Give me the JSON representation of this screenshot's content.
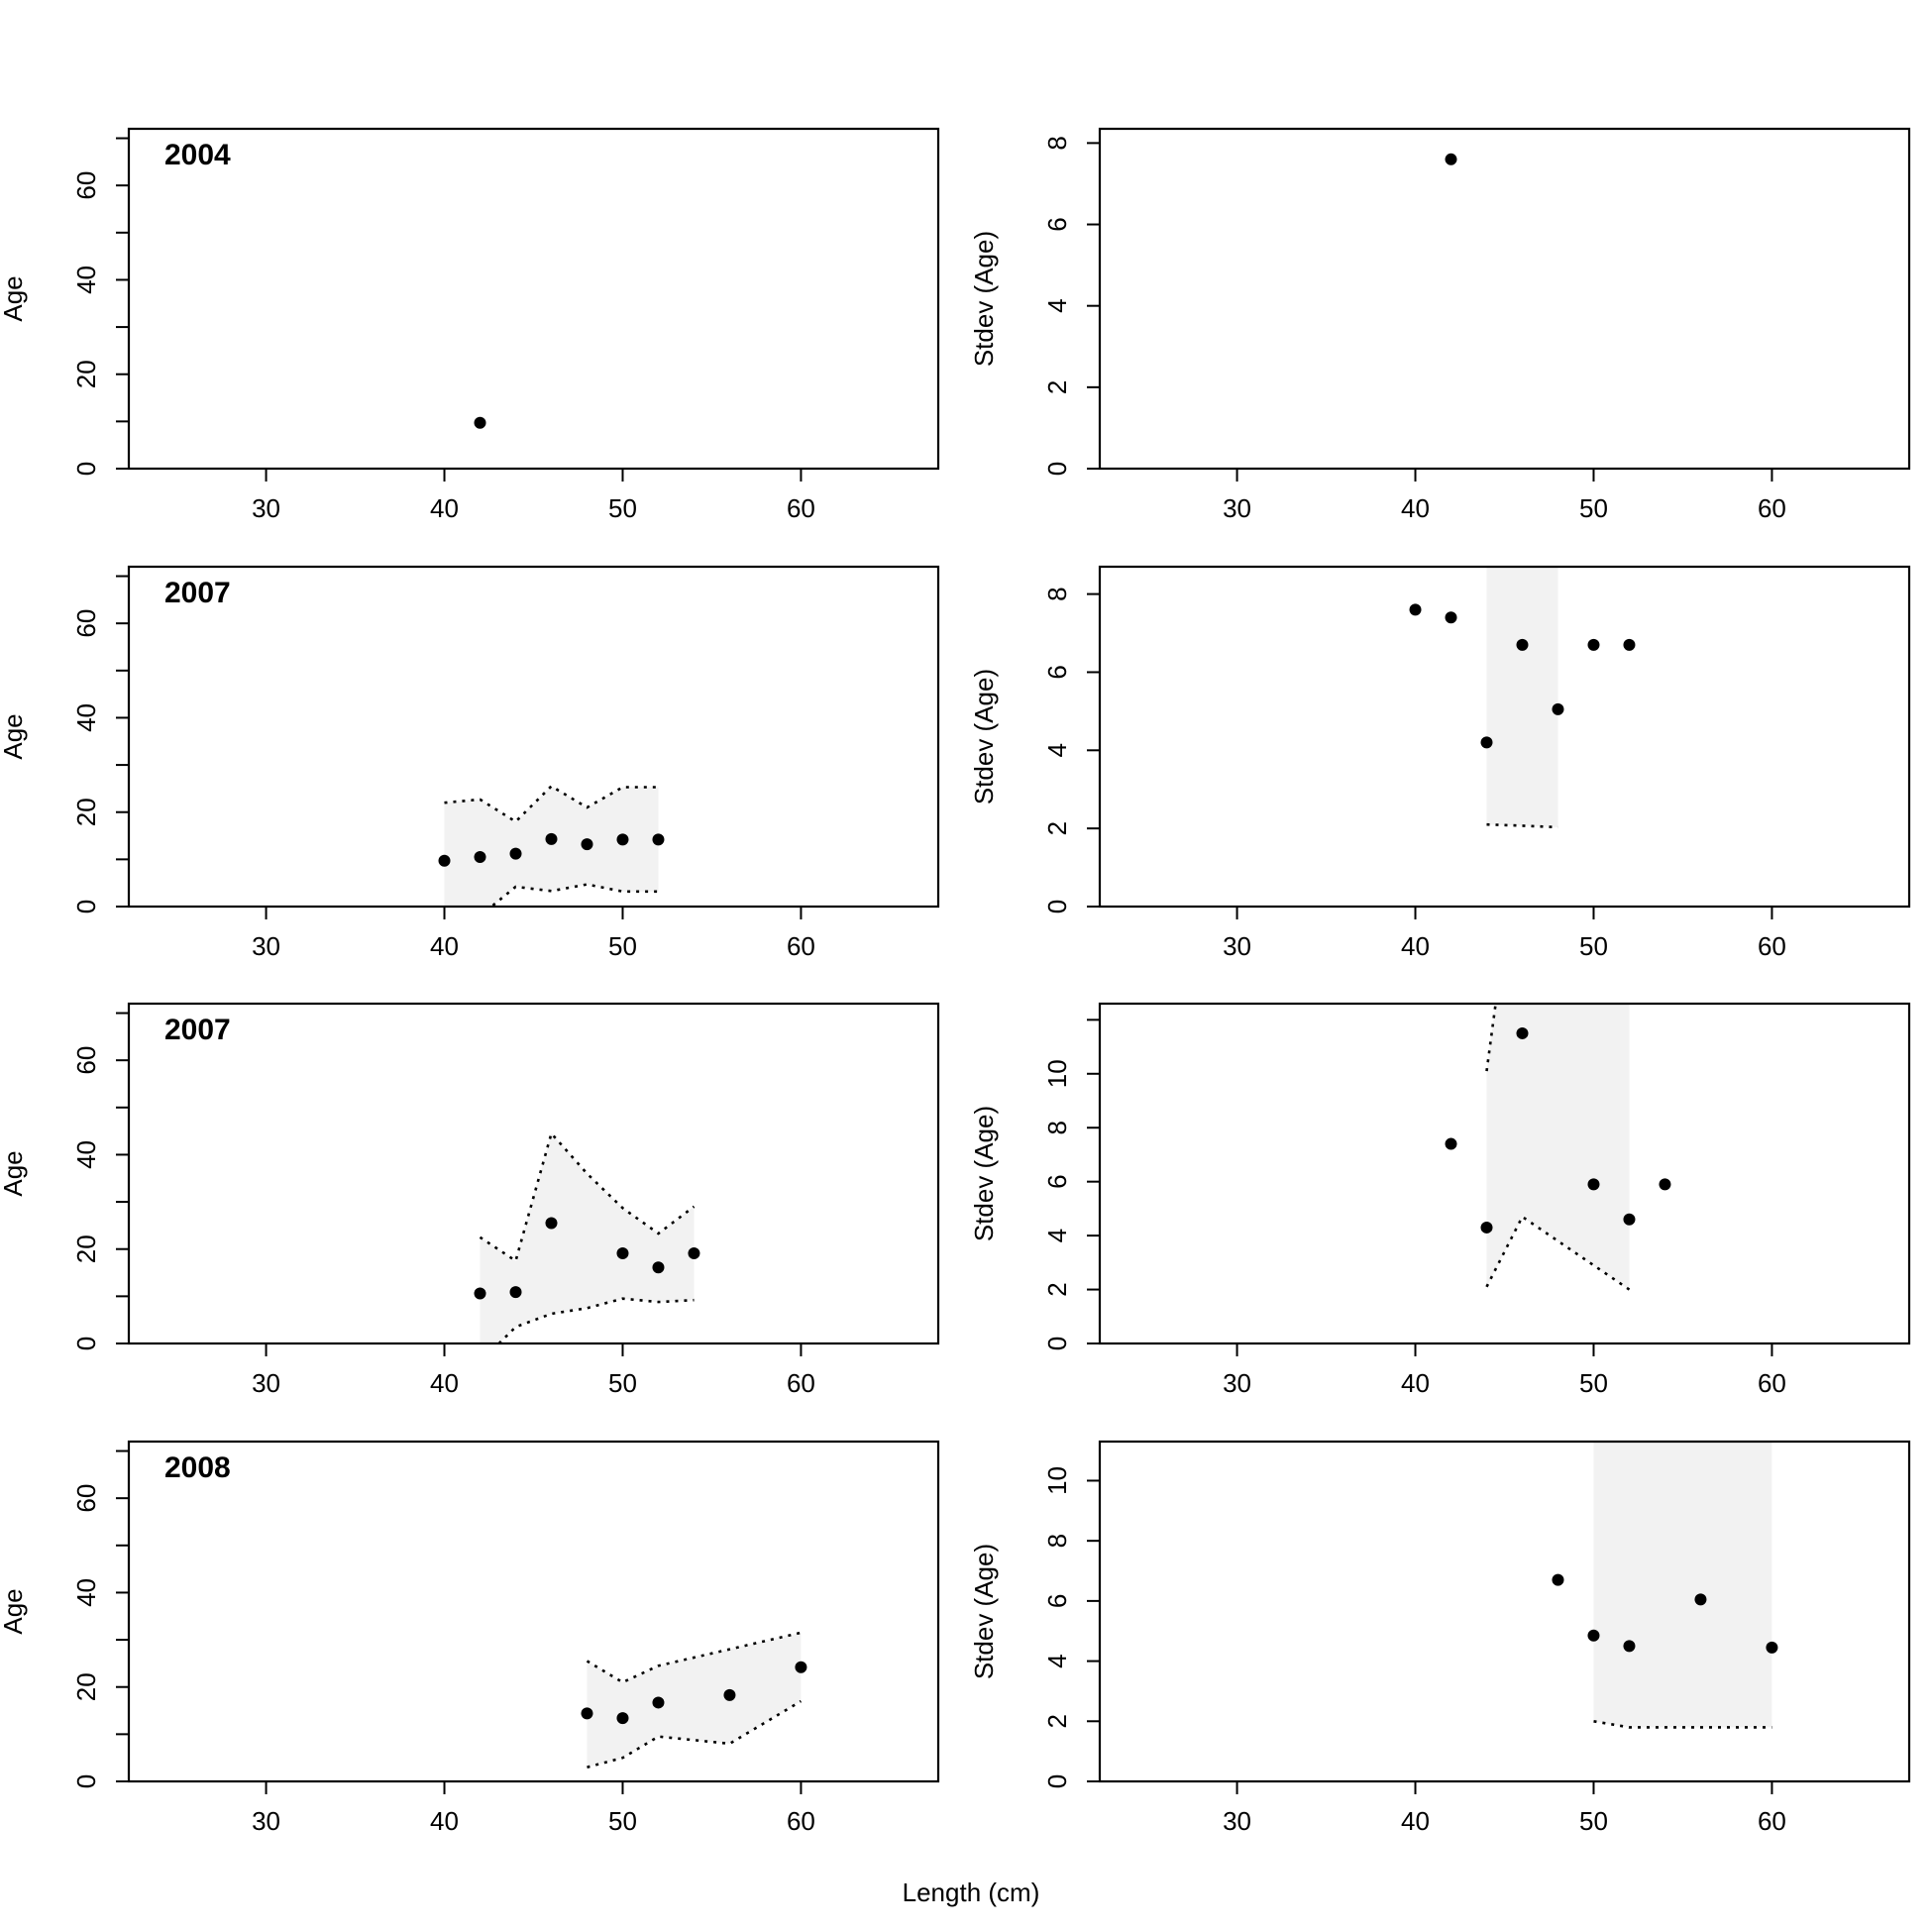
{
  "figure": {
    "xlabel": "Length (cm)"
  },
  "chart_data": [
    {
      "type": "scatter",
      "title": "2004",
      "ylabel": "Age",
      "xlim": [
        22.3,
        67.7
      ],
      "ylim": [
        0,
        72
      ],
      "xticks": [
        30,
        40,
        50,
        60
      ],
      "yticks": [
        0,
        20,
        40,
        60
      ],
      "yminor": [
        10,
        30,
        50,
        70
      ],
      "points": {
        "x": [
          42
        ],
        "y": [
          9.7
        ]
      },
      "band": null
    },
    {
      "type": "scatter",
      "title": "",
      "ylabel": "Stdev (Age)",
      "xlim": [
        22.3,
        67.7
      ],
      "ylim": [
        0,
        8.35
      ],
      "xticks": [
        30,
        40,
        50,
        60
      ],
      "yticks": [
        0,
        2,
        4,
        6,
        8
      ],
      "yminor": [],
      "points": {
        "x": [
          42
        ],
        "y": [
          7.6
        ]
      },
      "band": null
    },
    {
      "type": "area",
      "title": "2007",
      "ylabel": "Age",
      "xlim": [
        22.3,
        67.7
      ],
      "ylim": [
        0,
        72
      ],
      "xticks": [
        30,
        40,
        50,
        60
      ],
      "yticks": [
        0,
        20,
        40,
        60
      ],
      "yminor": [
        10,
        30,
        50,
        70
      ],
      "points": {
        "x": [
          40,
          42,
          44,
          46,
          48,
          50,
          52
        ],
        "y": [
          9.7,
          10.5,
          11.2,
          14.3,
          13.2,
          14.2,
          14.2
        ]
      },
      "band": {
        "x": [
          40,
          42,
          44,
          46,
          48,
          50,
          52
        ],
        "upper": [
          22,
          22.7,
          18,
          25.5,
          21,
          25.3,
          25.3
        ],
        "lower": [
          -4,
          -2,
          4.2,
          3.3,
          4.7,
          3.2,
          3.2
        ]
      }
    },
    {
      "type": "area",
      "title": "",
      "ylabel": "Stdev (Age)",
      "xlim": [
        22.3,
        67.7
      ],
      "ylim": [
        0,
        8.7
      ],
      "xticks": [
        30,
        40,
        50,
        60
      ],
      "yticks": [
        0,
        2,
        4,
        6,
        8
      ],
      "yminor": [],
      "points": {
        "x": [
          40,
          42,
          44,
          46,
          48,
          50,
          52
        ],
        "y": [
          7.6,
          7.4,
          4.2,
          6.7,
          5.05,
          6.7,
          6.7
        ]
      },
      "band": {
        "x": [
          44,
          46,
          48
        ],
        "upper": [
          12,
          12,
          12
        ],
        "lower": [
          2.1,
          2.07,
          2.03
        ]
      }
    },
    {
      "type": "area",
      "title": "2007",
      "ylabel": "Age",
      "xlim": [
        22.3,
        67.7
      ],
      "ylim": [
        0,
        72
      ],
      "xticks": [
        30,
        40,
        50,
        60
      ],
      "yticks": [
        0,
        20,
        40,
        60
      ],
      "yminor": [
        10,
        30,
        50,
        70
      ],
      "points": {
        "x": [
          42,
          44,
          46,
          50,
          52,
          54
        ],
        "y": [
          10.6,
          10.9,
          25.5,
          19.1,
          16.1,
          19.1
        ]
      },
      "band": {
        "x": [
          42,
          44,
          46,
          48,
          50,
          52,
          54
        ],
        "upper": [
          22.5,
          17.5,
          44.5,
          36,
          28.7,
          23.3,
          29
        ],
        "lower": [
          -4,
          3.5,
          6.3,
          7.5,
          9.5,
          8.8,
          9.2
        ]
      }
    },
    {
      "type": "area",
      "title": "",
      "ylabel": "Stdev (Age)",
      "xlim": [
        22.3,
        67.7
      ],
      "ylim": [
        0,
        12.6
      ],
      "xticks": [
        30,
        40,
        50,
        60
      ],
      "yticks": [
        0,
        2,
        4,
        6,
        8,
        10
      ],
      "yminor": [
        12
      ],
      "points": {
        "x": [
          42,
          44,
          46,
          50,
          52,
          54
        ],
        "y": [
          7.4,
          4.3,
          11.5,
          5.9,
          4.6,
          5.9
        ]
      },
      "band": {
        "x": [
          44,
          46,
          52
        ],
        "upper": [
          10.1,
          20,
          20
        ],
        "lower": [
          2.1,
          4.7,
          2
        ]
      }
    },
    {
      "type": "area",
      "title": "2008",
      "ylabel": "Age",
      "xlim": [
        22.3,
        67.7
      ],
      "ylim": [
        0,
        72
      ],
      "xticks": [
        30,
        40,
        50,
        60
      ],
      "yticks": [
        0,
        20,
        40,
        60
      ],
      "yminor": [
        10,
        30,
        50,
        70
      ],
      "points": {
        "x": [
          48,
          50,
          52,
          56,
          60
        ],
        "y": [
          14.4,
          13.4,
          16.7,
          18.3,
          24.2
        ]
      },
      "band": {
        "x": [
          48,
          50,
          52,
          56,
          60
        ],
        "upper": [
          25.5,
          21,
          24.5,
          28,
          31.5
        ],
        "lower": [
          3,
          5,
          9.5,
          8,
          17
        ]
      }
    },
    {
      "type": "area",
      "title": "",
      "ylabel": "Stdev (Age)",
      "xlim": [
        22.3,
        67.7
      ],
      "ylim": [
        0,
        11.3
      ],
      "xticks": [
        30,
        40,
        50,
        60
      ],
      "yticks": [
        0,
        2,
        4,
        6,
        8,
        10
      ],
      "yminor": [],
      "points": {
        "x": [
          48,
          50,
          52,
          56,
          60
        ],
        "y": [
          6.7,
          4.85,
          4.5,
          6.05,
          4.45
        ]
      },
      "band": {
        "x": [
          50,
          52,
          56,
          60
        ],
        "upper": [
          20,
          20,
          20,
          20
        ],
        "lower": [
          2,
          1.8,
          1.8,
          1.8
        ]
      }
    }
  ]
}
